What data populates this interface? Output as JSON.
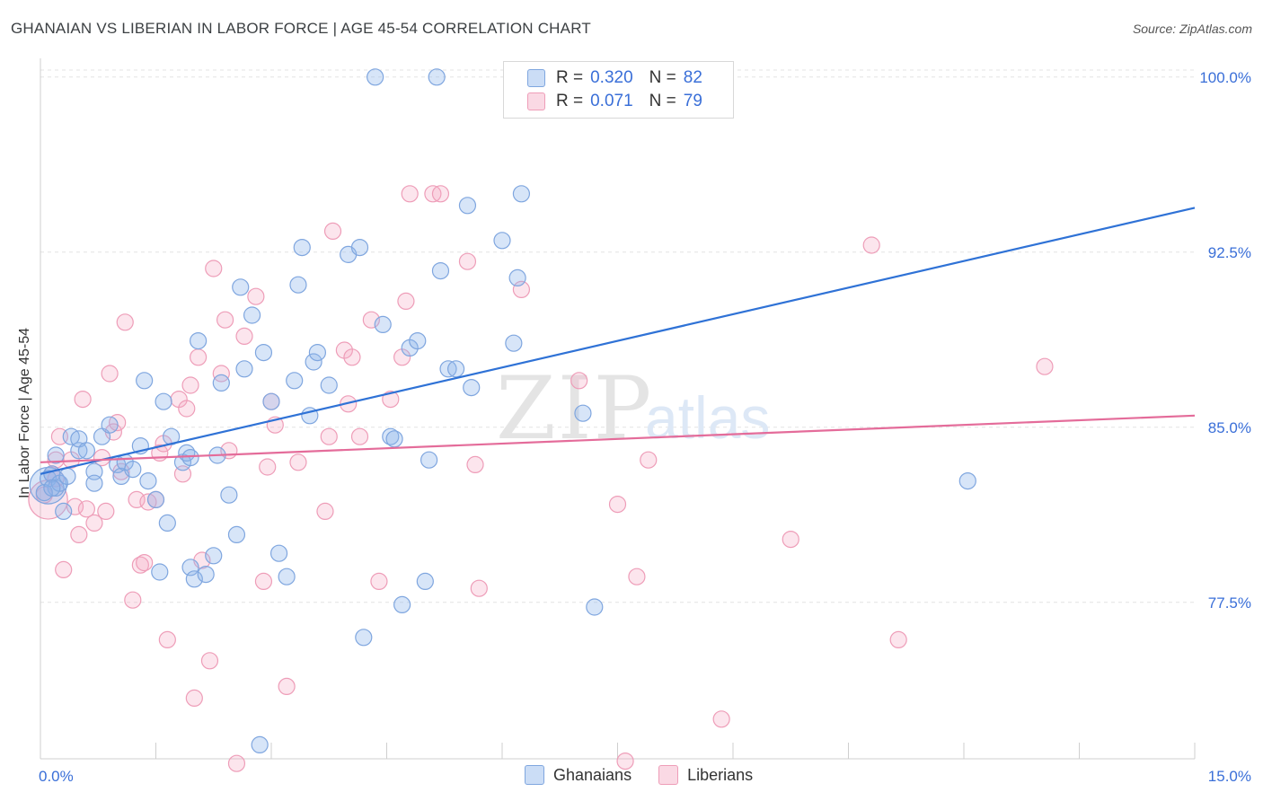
{
  "title": "GHANAIAN VS LIBERIAN IN LABOR FORCE | AGE 45-54 CORRELATION CHART",
  "source": "Source: ZipAtlas.com",
  "watermark": {
    "zip": "ZIP",
    "atlas": "atlas"
  },
  "legend_top": [
    {
      "r_label": "R =",
      "r_value": "0.320",
      "n_label": "N =",
      "n_value": "82"
    },
    {
      "r_label": "R =",
      "r_value": "0.071",
      "n_label": "N =",
      "n_value": "79"
    }
  ],
  "legend_bottom": [
    "Ghanaians",
    "Liberians"
  ],
  "colors": {
    "blue_fill": "rgba(140,180,235,0.35)",
    "blue_stroke": "#7fa6df",
    "blue_line": "#2f72d6",
    "pink_fill": "rgba(245,170,195,0.30)",
    "pink_stroke": "#ee9db8",
    "pink_line": "#e46c9a",
    "tick_label": "#3a6fd8",
    "grid": "#e3e3e3"
  },
  "chart_data": {
    "type": "scatter",
    "title": "GHANAIAN VS LIBERIAN IN LABOR FORCE | AGE 45-54 CORRELATION CHART",
    "ylabel": "In Labor Force | Age 45-54",
    "xlabel": "",
    "xlim": [
      0,
      15
    ],
    "ylim": [
      70.8,
      100.8
    ],
    "x_ticks": [
      0,
      15
    ],
    "x_tick_labels": [
      "0.0%",
      "15.0%"
    ],
    "y_ticks": [
      77.5,
      85.0,
      92.5,
      100.0
    ],
    "y_tick_labels": [
      "77.5%",
      "85.0%",
      "92.5%",
      "100.0%"
    ],
    "grid": "horizontal dashed",
    "legend_position": "top-center",
    "series": [
      {
        "name": "Ghanaians",
        "trend": {
          "x": [
            0,
            15
          ],
          "y": [
            83.0,
            94.4
          ]
        },
        "points": [
          [
            0.1,
            82.5
          ],
          [
            0.1,
            82.8
          ],
          [
            0.2,
            82.4
          ],
          [
            0.2,
            83.8
          ],
          [
            0.3,
            81.4
          ],
          [
            0.4,
            84.6
          ],
          [
            0.5,
            84.0
          ],
          [
            0.5,
            84.5
          ],
          [
            0.6,
            84.0
          ],
          [
            0.7,
            83.1
          ],
          [
            0.7,
            82.6
          ],
          [
            0.8,
            84.6
          ],
          [
            0.9,
            85.1
          ],
          [
            1.0,
            83.4
          ],
          [
            1.05,
            82.9
          ],
          [
            1.1,
            83.5
          ],
          [
            1.2,
            83.2
          ],
          [
            1.3,
            84.2
          ],
          [
            1.35,
            87.0
          ],
          [
            1.4,
            82.7
          ],
          [
            1.5,
            81.9
          ],
          [
            1.55,
            78.8
          ],
          [
            1.6,
            86.1
          ],
          [
            1.65,
            80.9
          ],
          [
            1.7,
            84.6
          ],
          [
            1.85,
            83.5
          ],
          [
            1.9,
            83.9
          ],
          [
            1.95,
            83.7
          ],
          [
            1.95,
            79.0
          ],
          [
            2.0,
            78.5
          ],
          [
            2.05,
            88.7
          ],
          [
            2.15,
            78.7
          ],
          [
            2.25,
            79.5
          ],
          [
            2.3,
            83.8
          ],
          [
            2.35,
            86.9
          ],
          [
            2.45,
            82.1
          ],
          [
            2.55,
            80.4
          ],
          [
            2.6,
            91.0
          ],
          [
            2.65,
            87.5
          ],
          [
            2.75,
            89.8
          ],
          [
            2.85,
            71.4
          ],
          [
            2.9,
            88.2
          ],
          [
            3.0,
            86.1
          ],
          [
            3.1,
            79.6
          ],
          [
            3.2,
            78.6
          ],
          [
            3.3,
            87.0
          ],
          [
            3.35,
            91.1
          ],
          [
            3.4,
            92.7
          ],
          [
            3.5,
            85.5
          ],
          [
            3.55,
            87.8
          ],
          [
            3.6,
            88.2
          ],
          [
            3.75,
            86.8
          ],
          [
            4.0,
            92.4
          ],
          [
            4.15,
            92.7
          ],
          [
            4.2,
            76.0
          ],
          [
            4.35,
            100.0
          ],
          [
            4.45,
            89.4
          ],
          [
            4.55,
            84.6
          ],
          [
            4.6,
            84.5
          ],
          [
            4.7,
            77.4
          ],
          [
            4.8,
            88.4
          ],
          [
            4.9,
            88.7
          ],
          [
            5.0,
            78.4
          ],
          [
            5.05,
            83.6
          ],
          [
            5.15,
            100.0
          ],
          [
            5.2,
            91.7
          ],
          [
            5.3,
            87.5
          ],
          [
            5.4,
            87.5
          ],
          [
            5.55,
            94.5
          ],
          [
            5.6,
            86.7
          ],
          [
            6.0,
            93.0
          ],
          [
            6.15,
            88.6
          ],
          [
            6.2,
            91.4
          ],
          [
            6.25,
            95.0
          ],
          [
            7.05,
            85.6
          ],
          [
            7.2,
            77.3
          ],
          [
            12.05,
            82.7
          ],
          [
            0.05,
            82.2
          ],
          [
            0.15,
            83.0
          ],
          [
            0.25,
            82.6
          ],
          [
            0.35,
            82.9
          ],
          [
            0.15,
            82.4
          ]
        ],
        "sizes": [
          34,
          1,
          1,
          1,
          1,
          1,
          1,
          1,
          1,
          1,
          1,
          1,
          1,
          1,
          1,
          1,
          1,
          1,
          1,
          1,
          1,
          1,
          1,
          1,
          1,
          1,
          1,
          1,
          1,
          1,
          1,
          1,
          1,
          1,
          1,
          1,
          1,
          1,
          1,
          1,
          1,
          1,
          1,
          1,
          1,
          1,
          1,
          1,
          1,
          1,
          1,
          1,
          1,
          1,
          1,
          1,
          1,
          1,
          1,
          1,
          1,
          1,
          1,
          1,
          1,
          1,
          1,
          1,
          1,
          1,
          1,
          1,
          1,
          1,
          1,
          1,
          1,
          1,
          1,
          1,
          1,
          1
        ]
      },
      {
        "name": "Liberians",
        "trend": {
          "x": [
            0,
            15
          ],
          "y": [
            83.5,
            85.5
          ]
        },
        "points": [
          [
            0.1,
            81.9
          ],
          [
            0.15,
            83.0
          ],
          [
            0.2,
            82.8
          ],
          [
            0.25,
            84.6
          ],
          [
            0.3,
            78.9
          ],
          [
            0.4,
            83.6
          ],
          [
            0.45,
            81.6
          ],
          [
            0.5,
            80.4
          ],
          [
            0.55,
            86.2
          ],
          [
            0.6,
            81.5
          ],
          [
            0.7,
            80.9
          ],
          [
            0.8,
            83.7
          ],
          [
            0.85,
            81.4
          ],
          [
            0.9,
            87.3
          ],
          [
            0.95,
            84.8
          ],
          [
            1.0,
            85.2
          ],
          [
            1.05,
            83.1
          ],
          [
            1.1,
            89.5
          ],
          [
            1.2,
            77.6
          ],
          [
            1.25,
            81.9
          ],
          [
            1.3,
            79.1
          ],
          [
            1.35,
            79.2
          ],
          [
            1.4,
            81.8
          ],
          [
            1.5,
            81.9
          ],
          [
            1.55,
            83.9
          ],
          [
            1.6,
            84.3
          ],
          [
            1.65,
            75.9
          ],
          [
            1.8,
            86.2
          ],
          [
            1.85,
            83.0
          ],
          [
            1.9,
            85.8
          ],
          [
            1.95,
            86.8
          ],
          [
            2.0,
            73.4
          ],
          [
            2.05,
            88.0
          ],
          [
            2.1,
            79.3
          ],
          [
            2.2,
            75.0
          ],
          [
            2.25,
            91.8
          ],
          [
            2.35,
            87.3
          ],
          [
            2.4,
            89.6
          ],
          [
            2.45,
            84.0
          ],
          [
            2.55,
            70.6
          ],
          [
            2.65,
            88.9
          ],
          [
            2.8,
            90.6
          ],
          [
            2.9,
            78.4
          ],
          [
            2.95,
            83.3
          ],
          [
            3.0,
            86.1
          ],
          [
            3.05,
            85.1
          ],
          [
            3.2,
            73.9
          ],
          [
            3.35,
            83.5
          ],
          [
            3.7,
            81.4
          ],
          [
            3.75,
            84.6
          ],
          [
            3.8,
            93.4
          ],
          [
            3.95,
            88.3
          ],
          [
            4.0,
            86.0
          ],
          [
            4.05,
            88.0
          ],
          [
            4.15,
            84.6
          ],
          [
            4.3,
            89.6
          ],
          [
            4.4,
            78.4
          ],
          [
            4.55,
            86.2
          ],
          [
            4.7,
            88.0
          ],
          [
            4.75,
            90.4
          ],
          [
            4.8,
            95.0
          ],
          [
            5.1,
            95.0
          ],
          [
            5.2,
            95.0
          ],
          [
            5.55,
            92.1
          ],
          [
            5.65,
            83.4
          ],
          [
            5.7,
            78.1
          ],
          [
            6.25,
            90.9
          ],
          [
            7.0,
            87.0
          ],
          [
            7.5,
            81.7
          ],
          [
            7.6,
            70.7
          ],
          [
            7.75,
            78.6
          ],
          [
            7.9,
            83.6
          ],
          [
            8.85,
            72.5
          ],
          [
            9.75,
            80.2
          ],
          [
            10.8,
            92.8
          ],
          [
            11.15,
            75.9
          ],
          [
            13.05,
            87.6
          ],
          [
            0.05,
            82.1
          ],
          [
            0.2,
            83.6
          ]
        ],
        "sizes": [
          38,
          1,
          1,
          1,
          1,
          1,
          1,
          1,
          1,
          1,
          1,
          1,
          1,
          1,
          1,
          1,
          1,
          1,
          1,
          1,
          1,
          1,
          1,
          1,
          1,
          1,
          1,
          1,
          1,
          1,
          1,
          1,
          1,
          1,
          1,
          1,
          1,
          1,
          1,
          1,
          1,
          1,
          1,
          1,
          1,
          1,
          1,
          1,
          1,
          1,
          1,
          1,
          1,
          1,
          1,
          1,
          1,
          1,
          1,
          1,
          1,
          1,
          1,
          1,
          1,
          1,
          1,
          1,
          1,
          1,
          1,
          1,
          1,
          1,
          1,
          1,
          1,
          1,
          1
        ]
      }
    ]
  }
}
